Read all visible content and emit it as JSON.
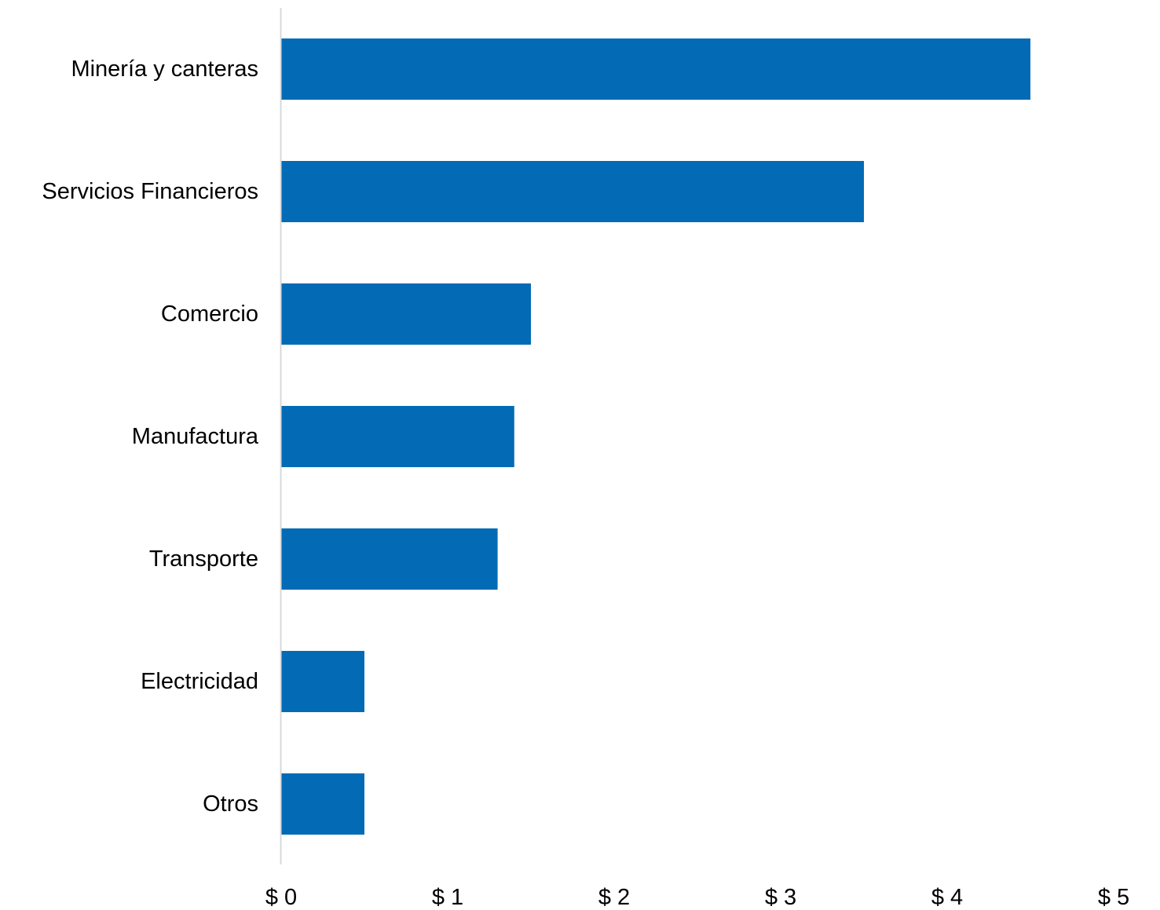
{
  "chart_data": {
    "type": "bar",
    "orientation": "horizontal",
    "categories": [
      "Minería y canteras",
      "Servicios Financieros",
      "Comercio",
      "Manufactura",
      "Transporte",
      "Electricidad",
      "Otros"
    ],
    "values": [
      4.5,
      3.5,
      1.5,
      1.4,
      1.3,
      0.5,
      0.5
    ],
    "xlim": [
      0,
      5
    ],
    "xticks": [
      0,
      1,
      2,
      3,
      4,
      5
    ],
    "xtick_labels": [
      "$ 0",
      "$ 1",
      "$ 2",
      "$ 3",
      "$ 4",
      "$ 5"
    ],
    "grid": false,
    "bar_color": "#036BB5",
    "axis_color": "#D9D9D9"
  }
}
